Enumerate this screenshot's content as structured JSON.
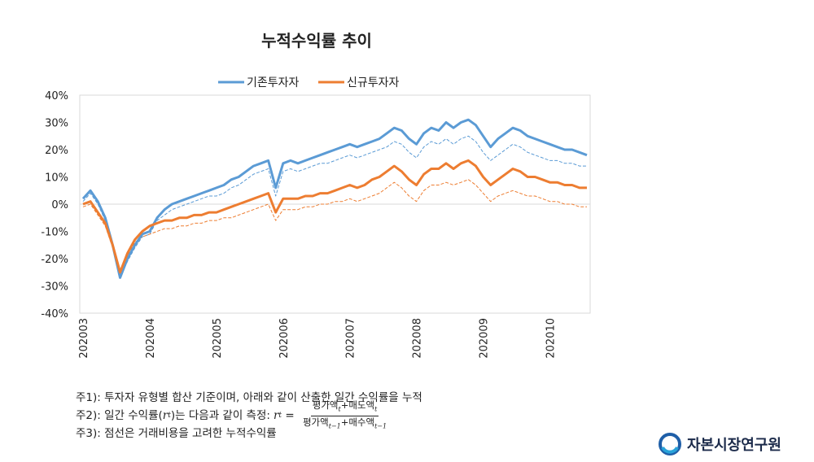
{
  "chart_data": {
    "type": "line",
    "title": "누적수익률 추이",
    "legend": {
      "placement": "top-center",
      "entries": [
        "기존투자자",
        "신규투자자"
      ]
    },
    "ylim": [
      -40,
      40
    ],
    "yticks": [
      "40%",
      "30%",
      "20%",
      "10%",
      "0%",
      "-10%",
      "-20%",
      "-30%",
      "-40%"
    ],
    "xlim": [
      0,
      68
    ],
    "xticks": [
      {
        "x": 0,
        "label": "202003"
      },
      {
        "x": 9,
        "label": "202004"
      },
      {
        "x": 18,
        "label": "202005"
      },
      {
        "x": 27,
        "label": "202006"
      },
      {
        "x": 36,
        "label": "202007"
      },
      {
        "x": 45,
        "label": "202008"
      },
      {
        "x": 54,
        "label": "202009"
      },
      {
        "x": 63,
        "label": "202010"
      }
    ],
    "grid": false,
    "x": [
      0,
      1,
      2,
      3,
      4,
      5,
      6,
      7,
      8,
      9,
      10,
      11,
      12,
      13,
      14,
      15,
      16,
      17,
      18,
      19,
      20,
      21,
      22,
      23,
      24,
      25,
      26,
      27,
      28,
      29,
      30,
      31,
      32,
      33,
      34,
      35,
      36,
      37,
      38,
      39,
      40,
      41,
      42,
      43,
      44,
      45,
      46,
      47,
      48,
      49,
      50,
      51,
      52,
      53,
      54,
      55,
      56,
      57,
      58,
      59,
      60,
      61,
      62,
      63,
      64,
      65,
      66,
      67,
      68
    ],
    "series": [
      {
        "name": "기존투자자",
        "color": "#5b9bd5",
        "style": "solid",
        "values": [
          2,
          5,
          1,
          -5,
          -15,
          -27,
          -20,
          -15,
          -11,
          -10,
          -5,
          -2,
          0,
          1,
          2,
          3,
          4,
          5,
          6,
          7,
          9,
          10,
          12,
          14,
          15,
          16,
          6,
          15,
          16,
          15,
          16,
          17,
          18,
          19,
          20,
          21,
          22,
          21,
          22,
          23,
          24,
          26,
          28,
          27,
          24,
          22,
          26,
          28,
          27,
          30,
          28,
          30,
          31,
          29,
          25,
          21,
          24,
          26,
          28,
          27,
          25,
          24,
          23,
          22,
          21,
          20,
          20,
          19,
          18
        ]
      },
      {
        "name": "",
        "color": "#5b9bd5",
        "style": "dashed",
        "values": [
          1,
          4,
          0,
          -6,
          -16,
          -27,
          -21,
          -16,
          -12,
          -11,
          -6,
          -4,
          -2,
          -1,
          0,
          1,
          2,
          3,
          3,
          4,
          6,
          7,
          9,
          11,
          12,
          13,
          3,
          12,
          13,
          12,
          13,
          14,
          15,
          15,
          16,
          17,
          18,
          17,
          18,
          19,
          20,
          21,
          23,
          22,
          19,
          17,
          21,
          23,
          22,
          24,
          22,
          24,
          25,
          23,
          19,
          16,
          18,
          20,
          22,
          21,
          19,
          18,
          17,
          16,
          16,
          15,
          15,
          14,
          14
        ]
      },
      {
        "name": "신규투자자",
        "color": "#ed7d31",
        "style": "solid",
        "values": [
          0,
          1,
          -3,
          -7,
          -15,
          -25,
          -18,
          -13,
          -10,
          -8,
          -7,
          -6,
          -6,
          -5,
          -5,
          -4,
          -4,
          -3,
          -3,
          -2,
          -1,
          0,
          1,
          2,
          3,
          4,
          -3,
          2,
          2,
          2,
          3,
          3,
          4,
          4,
          5,
          6,
          7,
          6,
          7,
          9,
          10,
          12,
          14,
          12,
          9,
          7,
          11,
          13,
          13,
          15,
          13,
          15,
          16,
          14,
          10,
          7,
          9,
          11,
          13,
          12,
          10,
          10,
          9,
          8,
          8,
          7,
          7,
          6,
          6
        ]
      },
      {
        "name": "",
        "color": "#ed7d31",
        "style": "dashed",
        "values": [
          -1,
          0,
          -4,
          -8,
          -16,
          -25,
          -19,
          -14,
          -12,
          -11,
          -10,
          -9,
          -9,
          -8,
          -8,
          -7,
          -7,
          -6,
          -6,
          -5,
          -5,
          -4,
          -3,
          -2,
          -1,
          0,
          -6,
          -2,
          -2,
          -2,
          -1,
          -1,
          0,
          0,
          1,
          1,
          2,
          1,
          2,
          3,
          4,
          6,
          8,
          6,
          3,
          1,
          5,
          7,
          7,
          8,
          7,
          8,
          9,
          7,
          4,
          1,
          3,
          4,
          5,
          4,
          3,
          3,
          2,
          1,
          1,
          0,
          0,
          -1,
          -1
        ]
      }
    ]
  },
  "notes": {
    "note1": "주1): 투자자 유형별 합산 기준이며, 아래와 같이 산출한 일간 수익률을 누적",
    "note2_prefix": "주2): 일간 수익률(",
    "note2_rt": "r",
    "note2_t": "t",
    "note2_mid": ")는 다음과 같이 측정: ",
    "formula_lhs_r": "r",
    "formula_lhs_t": "t",
    "formula_eq": " = ",
    "formula_num": "평가액",
    "formula_num_sub": "t",
    "formula_num_plus": "+매도액",
    "formula_num_sub2": "t",
    "formula_den": "평가액",
    "formula_den_sub": "t−1",
    "formula_den_plus": "+매수액",
    "formula_den_sub2": "t−1",
    "note3": "주3): 점선은 거래비용을 고려한 누적수익률"
  },
  "logo": {
    "text": "자본시장연구원",
    "icon": "kcmi-swirl-icon"
  }
}
